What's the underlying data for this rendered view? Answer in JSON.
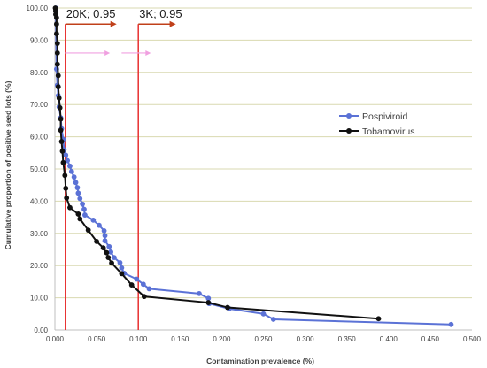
{
  "chart_data": {
    "type": "line",
    "xlabel": "Contamination prevalence (%)",
    "ylabel": "Cumulative proportion of positive seed lots (%)",
    "xlim": [
      0,
      0.5
    ],
    "ylim": [
      0,
      100
    ],
    "x_ticks": [
      "0.000",
      "0.050",
      "0.100",
      "0.150",
      "0.200",
      "0.250",
      "0.300",
      "0.350",
      "0.400",
      "0.450",
      "0.500"
    ],
    "y_ticks": [
      "0.00",
      "10.00",
      "20.00",
      "30.00",
      "40.00",
      "50.00",
      "60.00",
      "70.00",
      "80.00",
      "90.00",
      "100.00"
    ],
    "grid": "horizontal",
    "legend_position": "right",
    "series": [
      {
        "name": "Pospiviroid",
        "color": "#5b72d6",
        "x": [
          0.475,
          0.262,
          0.25,
          0.209,
          0.185,
          0.184,
          0.173,
          0.113,
          0.106,
          0.098,
          0.083,
          0.08,
          0.078,
          0.071,
          0.067,
          0.065,
          0.06,
          0.06,
          0.059,
          0.053,
          0.046,
          0.036,
          0.035,
          0.033,
          0.03,
          0.028,
          0.027,
          0.025,
          0.023,
          0.02,
          0.018,
          0.015,
          0.013,
          0.011,
          0.01,
          0.008,
          0.007,
          0.005,
          0.004,
          0.003,
          0.002,
          0.001
        ],
        "y": [
          1.7,
          3.3,
          5.0,
          6.6,
          8.2,
          9.8,
          11.3,
          12.8,
          14.2,
          15.8,
          17.6,
          19.3,
          20.9,
          22.5,
          24.2,
          25.9,
          27.7,
          29.3,
          30.8,
          32.5,
          34.1,
          35.7,
          37.5,
          39.1,
          40.8,
          42.5,
          44.2,
          45.8,
          47.5,
          49.2,
          50.9,
          52.6,
          54.3,
          56.0,
          59.2,
          62.5,
          65.9,
          69.3,
          72.8,
          76.0,
          81.0,
          100
        ]
      },
      {
        "name": "Tobamovirus",
        "color": "#111111",
        "x": [
          0.388,
          0.207,
          0.184,
          0.107,
          0.092,
          0.08,
          0.068,
          0.064,
          0.062,
          0.058,
          0.05,
          0.04,
          0.03,
          0.028,
          0.018,
          0.014,
          0.013,
          0.012,
          0.01,
          0.009,
          0.008,
          0.007,
          0.007,
          0.006,
          0.005,
          0.004,
          0.004,
          0.003,
          0.003,
          0.003,
          0.002,
          0.002,
          0.002,
          0.001,
          0.001,
          0.001,
          0.0005
        ],
        "y": [
          3.5,
          7.0,
          8.5,
          10.4,
          14.0,
          17.5,
          20.8,
          22.5,
          24.0,
          25.5,
          27.5,
          31.0,
          34.5,
          36.0,
          38.0,
          41.0,
          44.0,
          48.0,
          52.0,
          55.5,
          58.5,
          62.0,
          65.5,
          69.0,
          72.0,
          75.5,
          79.0,
          82.5,
          86.0,
          89.0,
          92.0,
          95.0,
          97.0,
          98.0,
          99.0,
          99.5,
          100
        ]
      }
    ],
    "annotations": [
      {
        "label": "20K; 0.95",
        "x": 0.0125,
        "arrow_y": 95,
        "arrow_end_x": 0.074,
        "arrow_color": "#c0401a"
      },
      {
        "label": "3K; 0.95",
        "x": 0.1,
        "arrow_y": 95,
        "arrow_end_x": 0.145,
        "arrow_color": "#c0401a"
      }
    ],
    "faint_arrows": [
      {
        "x_start": 0.012,
        "x_end": 0.066,
        "y": 86.0,
        "color": "#f0a0e0"
      },
      {
        "x_start": 0.08,
        "x_end": 0.115,
        "y": 86.0,
        "color": "#f0a0e0"
      }
    ],
    "vertical_markers": [
      {
        "x": 0.0125,
        "color": "#e83030"
      },
      {
        "x": 0.1,
        "color": "#e83030"
      }
    ]
  }
}
